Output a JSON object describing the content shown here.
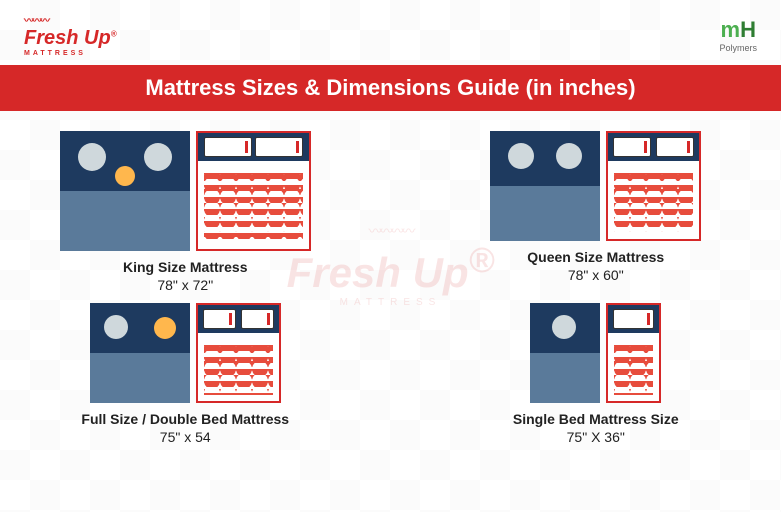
{
  "brand_left": {
    "name": "Fresh Up",
    "sub": "MATTRESS",
    "reg": "®"
  },
  "brand_right": {
    "mh_m": "m",
    "mh_h": "H",
    "sub": "Polymers"
  },
  "title": "Mattress Sizes & Dimensions Guide (in inches)",
  "watermark": {
    "name": "Fresh Up",
    "sub": "MATTRESS"
  },
  "colors": {
    "primary": "#d62828",
    "navy": "#1e3a5f",
    "wave": "#e74c3c",
    "green1": "#4caf50",
    "green2": "#2e7d32"
  },
  "sizes": [
    {
      "key": "king",
      "label": "King Size Mattress",
      "dims": "78\" x 72\"",
      "people": 3,
      "pillows": 2
    },
    {
      "key": "queen",
      "label": "Queen Size Mattress",
      "dims": "78\" x 60\"",
      "people": 2,
      "pillows": 2
    },
    {
      "key": "full",
      "label": "Full Size / Double Bed Mattress",
      "dims": "75\" x 54",
      "people": 2,
      "pillows": 2
    },
    {
      "key": "single",
      "label": "Single Bed Mattress Size",
      "dims": "75\" X 36\"",
      "people": 1,
      "pillows": 1
    }
  ]
}
